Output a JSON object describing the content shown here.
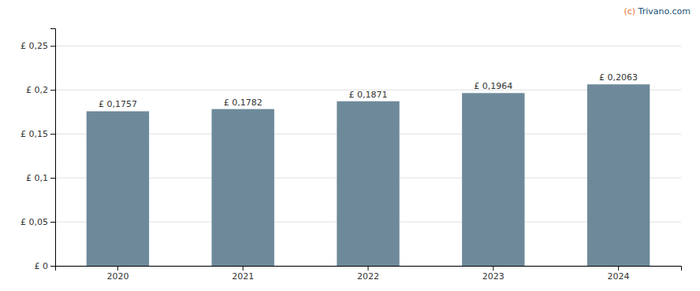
{
  "chart_data": {
    "type": "bar",
    "categories": [
      "2020",
      "2021",
      "2022",
      "2023",
      "2024"
    ],
    "values": [
      0.1757,
      0.1782,
      0.1871,
      0.1964,
      0.2063
    ],
    "value_labels": [
      "£ 0,1757",
      "£ 0,1782",
      "£ 0,1871",
      "£ 0,1964",
      "£ 0,2063"
    ],
    "data_labels": true,
    "color": "#6e8a9a",
    "ylim": [
      0,
      0.27
    ],
    "yticks": [
      {
        "value": 0,
        "label": "£ 0"
      },
      {
        "value": 0.05,
        "label": "£ 0,05"
      },
      {
        "value": 0.1,
        "label": "£ 0,1"
      },
      {
        "value": 0.15,
        "label": "£ 0,15"
      },
      {
        "value": 0.2,
        "label": "£ 0,2"
      },
      {
        "value": 0.25,
        "label": "£ 0,25"
      }
    ],
    "grid": true,
    "annotations": [
      {
        "text": "(c) ",
        "color": "#e07030"
      },
      {
        "text": "Trivano.com",
        "color": "#1a5276"
      }
    ]
  }
}
